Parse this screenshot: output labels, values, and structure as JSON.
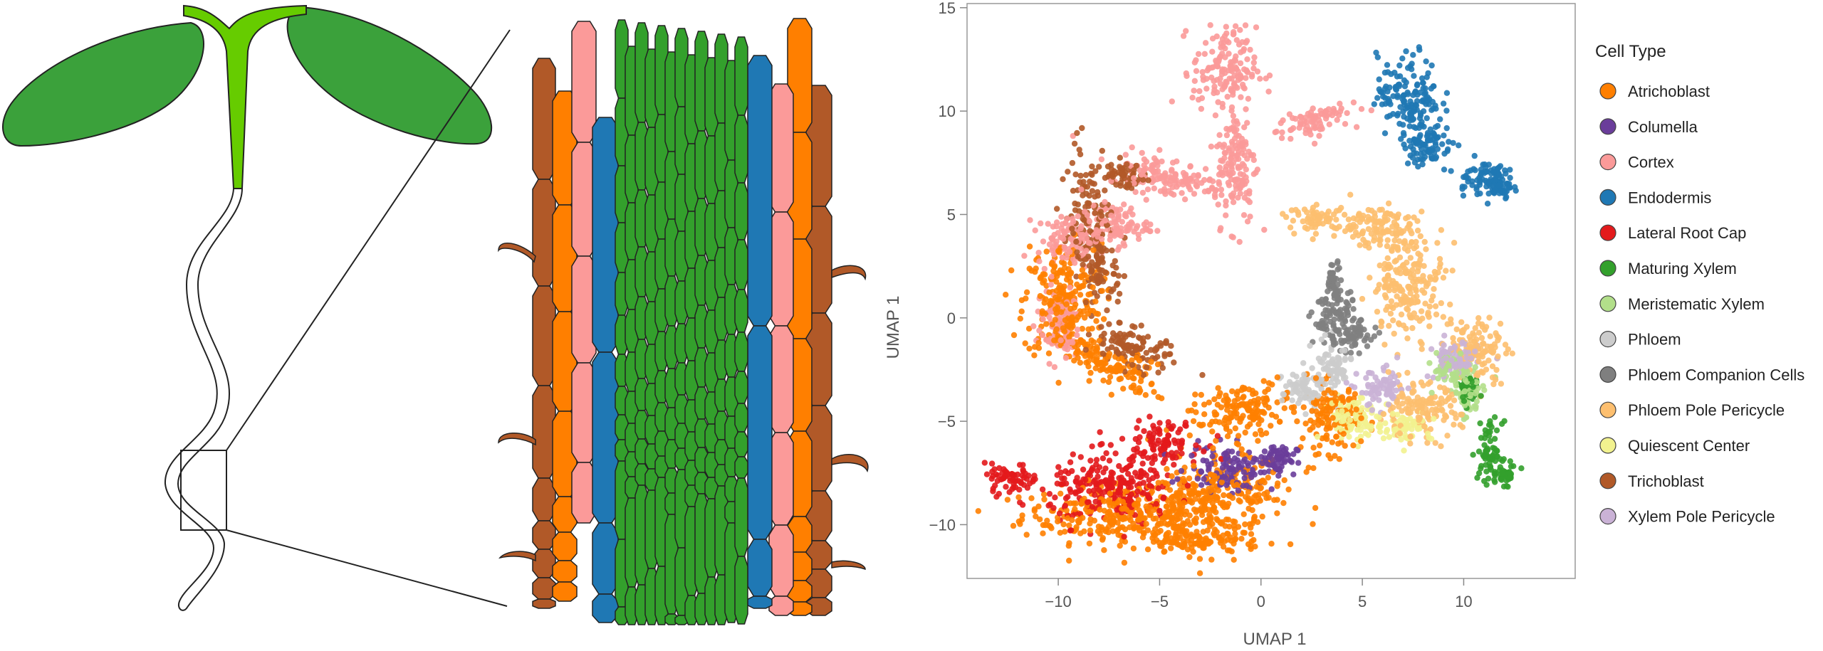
{
  "chart_data": {
    "type": "scatter",
    "xlabel": "UMAP 1",
    "ylabel": "UMAP 1",
    "xlim": [
      -14.5,
      15.5
    ],
    "ylim": [
      -12.6,
      15.2
    ],
    "x_ticks": [
      -10,
      -5,
      0,
      5,
      10
    ],
    "x_tick_labels": [
      "−10",
      "−5",
      "0",
      "5",
      "10"
    ],
    "y_ticks": [
      -10,
      -5,
      0,
      5,
      10,
      15
    ],
    "y_tick_labels": [
      "−10",
      "−5",
      "0",
      "5",
      "10",
      "15"
    ],
    "grid": false,
    "legend_position": "right",
    "legend_title": "Cell Type",
    "series": [
      {
        "name": "Atrichoblast",
        "color": "#FF7F00",
        "regions": [
          [
            -7,
            -9.5,
            4,
            1.1,
            0
          ],
          [
            -2.5,
            -8.8,
            3.5,
            1.4,
            0.2
          ],
          [
            -9.8,
            0.8,
            1.6,
            2.3,
            0
          ],
          [
            -7.5,
            -2.3,
            2.2,
            0.8,
            -0.4
          ],
          [
            -0.8,
            -4.5,
            2.2,
            1.1,
            0.3
          ],
          [
            3.5,
            -4.8,
            1.2,
            1.4,
            0
          ],
          [
            -3,
            -10.8,
            2.5,
            0.6,
            0
          ]
        ]
      },
      {
        "name": "Columella",
        "color": "#6A3D9A",
        "regions": [
          [
            -1.5,
            -7.3,
            1.8,
            0.9,
            0
          ],
          [
            0.8,
            -6.8,
            0.8,
            0.6,
            0
          ]
        ]
      },
      {
        "name": "Cortex",
        "color": "#FB9A99",
        "regions": [
          [
            -1.8,
            12,
            1.3,
            1.7,
            0
          ],
          [
            -1.2,
            7.5,
            0.8,
            2.5,
            0
          ],
          [
            -4.5,
            6.8,
            2.5,
            0.8,
            -0.2
          ],
          [
            -9.5,
            3.8,
            1.3,
            1.0,
            0
          ],
          [
            -7.2,
            4.5,
            1.4,
            0.8,
            0
          ],
          [
            2.5,
            9.5,
            1.5,
            0.6,
            0.3
          ],
          [
            -10,
            -0.3,
            0.9,
            1.5,
            0
          ]
        ]
      },
      {
        "name": "Endodermis",
        "color": "#1F78B4",
        "regions": [
          [
            7.3,
            10.8,
            1.3,
            1.6,
            0
          ],
          [
            8.2,
            8.5,
            1.0,
            1.0,
            0
          ],
          [
            10.8,
            6.8,
            1.0,
            0.7,
            0
          ],
          [
            11.8,
            6.4,
            0.5,
            0.7,
            0
          ]
        ]
      },
      {
        "name": "Lateral Root Cap",
        "color": "#E31A1C",
        "regions": [
          [
            -12.3,
            -7.8,
            1.1,
            0.6,
            0
          ],
          [
            -7.3,
            -8.3,
            2.6,
            1.4,
            0
          ],
          [
            -5,
            -6,
            1.6,
            0.8,
            0
          ]
        ]
      },
      {
        "name": "Maturing Xylem",
        "color": "#33A02C",
        "regions": [
          [
            11.3,
            -6.5,
            0.5,
            1.2,
            0
          ],
          [
            12,
            -7.6,
            0.6,
            0.4,
            0
          ],
          [
            10.2,
            -3.5,
            0.4,
            0.6,
            0
          ]
        ]
      },
      {
        "name": "Meristematic Xylem",
        "color": "#B2DF8A",
        "regions": [
          [
            10.2,
            -3.8,
            0.6,
            1.0,
            0
          ],
          [
            9.5,
            -2.5,
            0.8,
            0.7,
            0
          ]
        ]
      },
      {
        "name": "Phloem",
        "color": "#CCCCCC",
        "regions": [
          [
            3.5,
            -2.5,
            0.8,
            1.2,
            0
          ],
          [
            2,
            -3.5,
            0.8,
            0.8,
            0
          ]
        ]
      },
      {
        "name": "Phloem Companion Cells",
        "color": "#7F7F7F",
        "regions": [
          [
            3.6,
            0,
            0.9,
            1.1,
            0
          ],
          [
            4.6,
            -0.9,
            0.8,
            0.6,
            0
          ],
          [
            3.6,
            1.8,
            0.3,
            0.8,
            0
          ]
        ]
      },
      {
        "name": "Phloem Pole Pericycle",
        "color": "#FDBF6F",
        "regions": [
          [
            7.3,
            1.8,
            1.5,
            2.2,
            0
          ],
          [
            10.7,
            -1.5,
            1.2,
            1.3,
            0
          ],
          [
            5.6,
            4.5,
            1.6,
            0.8,
            0
          ],
          [
            7.8,
            -4.5,
            1.7,
            1.1,
            0
          ],
          [
            2.8,
            4.8,
            1.2,
            0.5,
            0
          ]
        ]
      },
      {
        "name": "Quiescent Center",
        "color": "#F2F28F",
        "regions": [
          [
            4.5,
            -4.8,
            1.2,
            0.9,
            0
          ],
          [
            7,
            -5.2,
            1.2,
            0.6,
            0
          ]
        ]
      },
      {
        "name": "Trichoblast",
        "color": "#B15928",
        "regions": [
          [
            -8.2,
            3.8,
            0.9,
            3.3,
            0.15
          ],
          [
            -6.3,
            -1.5,
            1.7,
            0.8,
            -0.4
          ],
          [
            -6.8,
            6.9,
            0.9,
            0.5,
            0
          ]
        ]
      },
      {
        "name": "Xylem Pole Pericycle",
        "color": "#CAB2D6",
        "regions": [
          [
            6,
            -3.5,
            1.0,
            0.8,
            0
          ],
          [
            9.5,
            -2.0,
            1.0,
            0.8,
            0
          ]
        ]
      }
    ]
  },
  "illustration": {
    "seedling_fill": "#3BA13B",
    "stem_fill": "#66CC00",
    "cell_colors": {
      "trichoblast": "#B15928",
      "atrichoblast": "#FF7F00",
      "cortex": "#FB9A99",
      "endodermis": "#1F78B4",
      "xylem": "#33A02C"
    }
  }
}
